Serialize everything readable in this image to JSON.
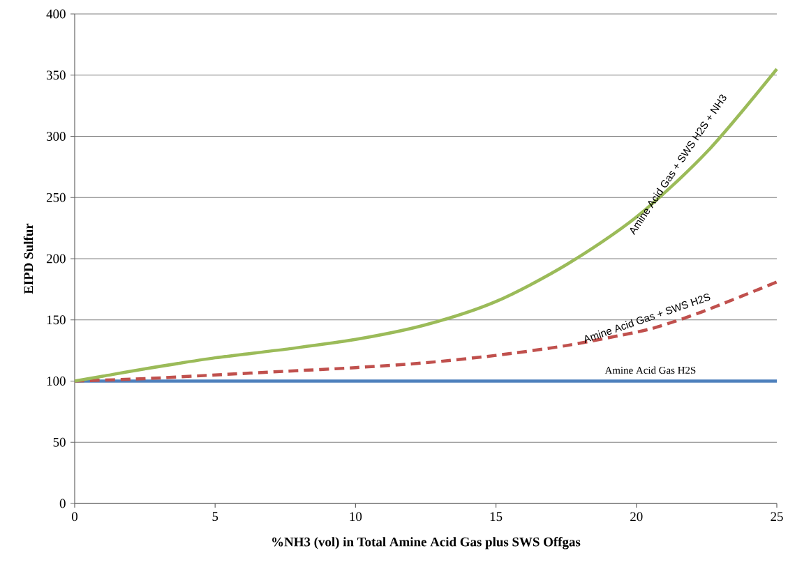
{
  "chart_data": {
    "type": "line",
    "xlabel": "%NH3 (vol) in Total Amine Acid Gas plus SWS Offgas",
    "ylabel": "EIPD Sulfur",
    "xlim": [
      0,
      25
    ],
    "xticks": [
      0,
      5,
      10,
      15,
      20,
      25
    ],
    "ylim": [
      0,
      400
    ],
    "yticks": [
      0,
      50,
      100,
      150,
      200,
      250,
      300,
      350,
      400
    ],
    "grid": "y",
    "marker": "none",
    "series": [
      {
        "name": "Amine Acid Gas H2S",
        "color": "#4f81bd",
        "line_style": "solid",
        "x": [
          0,
          25
        ],
        "values": [
          100,
          100
        ]
      },
      {
        "name": "Amine Acid Gas + SWS H2S",
        "color": "#c0504d",
        "line_style": "dashed",
        "x": [
          0,
          2.5,
          5,
          7.5,
          10,
          12.5,
          15,
          17.5,
          20,
          21,
          22.5,
          25
        ],
        "values": [
          100,
          102,
          105,
          108,
          111,
          115,
          121,
          129,
          140,
          146,
          158,
          181
        ]
      },
      {
        "name": "Amine Acid Gas + SWS H2S + NH3",
        "color": "#9bbb59",
        "line_style": "solid",
        "x": [
          0,
          1,
          2.5,
          5,
          7.5,
          10,
          12.5,
          15,
          17.5,
          20,
          22.5,
          25
        ],
        "values": [
          100,
          104,
          110,
          119,
          126,
          134,
          146,
          165,
          195,
          234,
          287,
          355
        ]
      }
    ]
  }
}
